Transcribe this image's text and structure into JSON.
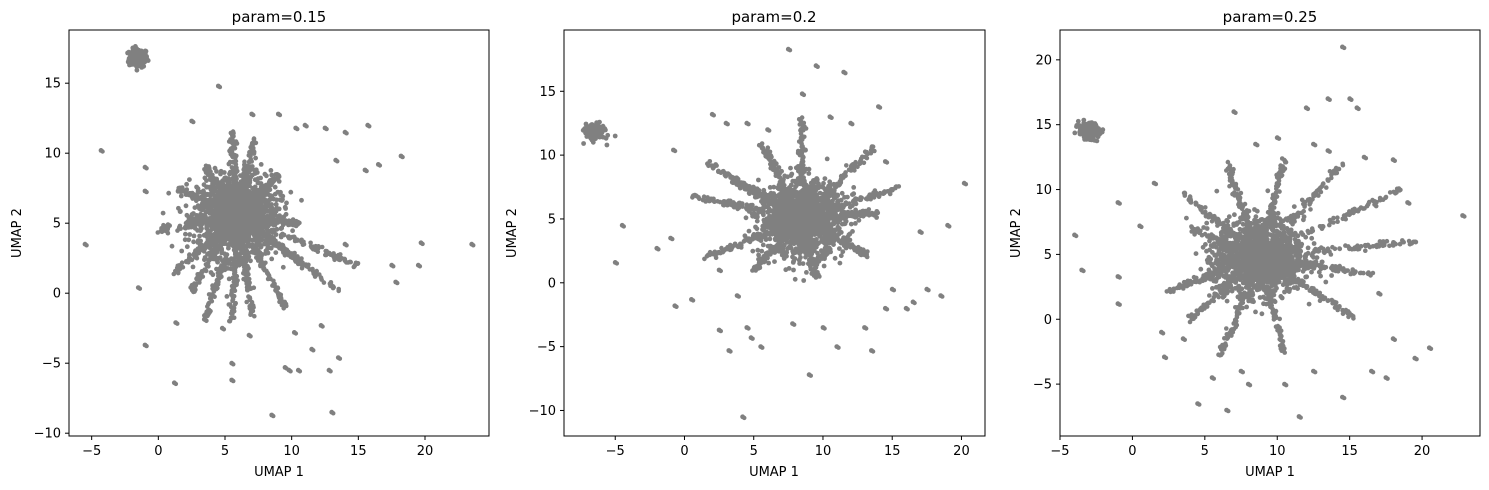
{
  "figure": {
    "background": "#ffffff",
    "point_color": "#808080"
  },
  "chart_data": [
    {
      "type": "scatter",
      "title": "param=0.15",
      "xlabel": "UMAP 1",
      "ylabel": "UMAP 2",
      "xlim": [
        -6.7,
        24.8
      ],
      "ylim": [
        -10.2,
        18.8
      ],
      "xticks": [
        -5,
        0,
        5,
        10,
        15,
        20
      ],
      "yticks": [
        -10,
        -5,
        0,
        5,
        10,
        15
      ],
      "xtick_labels": [
        "−5",
        "0",
        "5",
        "10",
        "15",
        "20"
      ],
      "ytick_labels": [
        "−10",
        "−5",
        "0",
        "5",
        "10",
        "15"
      ],
      "grid": false,
      "legend": "none",
      "dense_clusters": [
        {
          "x": -1.5,
          "y": 16.8,
          "sd": 0.35
        },
        {
          "x": 6.0,
          "y": 5.5,
          "sd": 1.5
        }
      ],
      "rays": [
        {
          "x0": 6,
          "y0": 5.5,
          "x1": 1.2,
          "y1": 1.5
        },
        {
          "x0": 6,
          "y0": 5.5,
          "x1": 2.5,
          "y1": 0.2
        },
        {
          "x0": 6,
          "y0": 5.5,
          "x1": 3.5,
          "y1": -1.8
        },
        {
          "x0": 6,
          "y0": 5.5,
          "x1": 5.5,
          "y1": -2.0
        },
        {
          "x0": 6,
          "y0": 5.5,
          "x1": 7.0,
          "y1": -1.5
        },
        {
          "x0": 6,
          "y0": 5.5,
          "x1": 9.5,
          "y1": -1.0
        },
        {
          "x0": 6,
          "y0": 5.5,
          "x1": 11.0,
          "y1": 2.0
        },
        {
          "x0": 6,
          "y0": 5.5,
          "x1": 15.0,
          "y1": 2.0
        },
        {
          "x0": 6,
          "y0": 5.5,
          "x1": 13.5,
          "y1": 0.2
        },
        {
          "x0": 6,
          "y0": 5.5,
          "x1": 1.5,
          "y1": 7.5
        },
        {
          "x0": 6,
          "y0": 5.5,
          "x1": 3.5,
          "y1": 9.0
        },
        {
          "x0": 6,
          "y0": 5.5,
          "x1": 5.5,
          "y1": 11.5
        },
        {
          "x0": 6,
          "y0": 5.5,
          "x1": 7.2,
          "y1": 11.2
        },
        {
          "x0": 6,
          "y0": 5.5,
          "x1": 9.0,
          "y1": 8.5
        },
        {
          "x0": 6,
          "y0": 5.5,
          "x1": 0.2,
          "y1": 4.5
        },
        {
          "x0": 6,
          "y0": 5.5,
          "x1": 10.5,
          "y1": 5.0
        }
      ],
      "outliers": [
        {
          "x": -5.5,
          "y": 3.5
        },
        {
          "x": -4.3,
          "y": 10.2
        },
        {
          "x": -1.5,
          "y": 0.4
        },
        {
          "x": -1.0,
          "y": -3.7
        },
        {
          "x": -1.0,
          "y": 7.3
        },
        {
          "x": -1.0,
          "y": 9.0
        },
        {
          "x": 1.2,
          "y": -6.4
        },
        {
          "x": 1.3,
          "y": -2.1
        },
        {
          "x": 2.5,
          "y": 12.3
        },
        {
          "x": 4.5,
          "y": 14.8
        },
        {
          "x": 5.5,
          "y": -5.0
        },
        {
          "x": 5.5,
          "y": -6.2
        },
        {
          "x": 6.8,
          "y": -3.0
        },
        {
          "x": 7.0,
          "y": 12.8
        },
        {
          "x": 9.0,
          "y": 12.8
        },
        {
          "x": 9.5,
          "y": -5.3
        },
        {
          "x": 9.8,
          "y": -5.5
        },
        {
          "x": 10.2,
          "y": -2.8
        },
        {
          "x": 10.3,
          "y": 11.8
        },
        {
          "x": 10.5,
          "y": -5.5
        },
        {
          "x": 11.0,
          "y": 12.0
        },
        {
          "x": 11.5,
          "y": -4.0
        },
        {
          "x": 12.2,
          "y": -2.3
        },
        {
          "x": 12.5,
          "y": 11.8
        },
        {
          "x": 12.8,
          "y": -5.5
        },
        {
          "x": 13.0,
          "y": -8.5
        },
        {
          "x": 13.5,
          "y": -4.6
        },
        {
          "x": 13.3,
          "y": 9.5
        },
        {
          "x": 14.0,
          "y": 11.5
        },
        {
          "x": 14.0,
          "y": 3.5
        },
        {
          "x": 15.5,
          "y": 8.8
        },
        {
          "x": 15.7,
          "y": 12.0
        },
        {
          "x": 16.5,
          "y": 9.2
        },
        {
          "x": 17.5,
          "y": 2.0
        },
        {
          "x": 17.8,
          "y": 0.8
        },
        {
          "x": 18.2,
          "y": 9.8
        },
        {
          "x": 19.5,
          "y": 2.0
        },
        {
          "x": 19.7,
          "y": 3.6
        },
        {
          "x": 23.5,
          "y": 3.5
        },
        {
          "x": 8.5,
          "y": -8.7
        },
        {
          "x": 4.8,
          "y": -2.5
        },
        {
          "x": 3.8,
          "y": -1.2
        }
      ]
    },
    {
      "type": "scatter",
      "title": "param=0.2",
      "xlabel": "UMAP 1",
      "ylabel": "UMAP 2",
      "xlim": [
        -8.7,
        21.7
      ],
      "ylim": [
        -12.0,
        19.8
      ],
      "xticks": [
        -5,
        0,
        5,
        10,
        15,
        20
      ],
      "yticks": [
        -10,
        -5,
        0,
        5,
        10,
        15
      ],
      "xtick_labels": [
        "−5",
        "0",
        "5",
        "10",
        "15",
        "20"
      ],
      "ytick_labels": [
        "−10",
        "−5",
        "0",
        "5",
        "10",
        "15"
      ],
      "grid": false,
      "legend": "none",
      "dense_clusters": [
        {
          "x": -6.5,
          "y": 11.8,
          "sd": 0.35
        },
        {
          "x": 8.5,
          "y": 5.0,
          "sd": 1.5
        }
      ],
      "rays": [
        {
          "x0": 8.5,
          "y0": 5,
          "x1": 1.5,
          "y1": 9.5
        },
        {
          "x0": 8.5,
          "y0": 5,
          "x1": 0.5,
          "y1": 6.8
        },
        {
          "x0": 8.5,
          "y0": 5,
          "x1": 1.5,
          "y1": 2.0
        },
        {
          "x0": 8.5,
          "y0": 5,
          "x1": 5.0,
          "y1": 1.0
        },
        {
          "x0": 8.5,
          "y0": 5,
          "x1": 9.5,
          "y1": 0.5
        },
        {
          "x0": 8.5,
          "y0": 5,
          "x1": 13.5,
          "y1": 2.0
        },
        {
          "x0": 8.5,
          "y0": 5,
          "x1": 14.0,
          "y1": 5.5
        },
        {
          "x0": 8.5,
          "y0": 5,
          "x1": 15.5,
          "y1": 7.5
        },
        {
          "x0": 8.5,
          "y0": 5,
          "x1": 13.5,
          "y1": 10.5
        },
        {
          "x0": 8.5,
          "y0": 5,
          "x1": 8.5,
          "y1": 13.0
        },
        {
          "x0": 8.5,
          "y0": 5,
          "x1": 5.5,
          "y1": 11.0
        },
        {
          "x0": 8.5,
          "y0": 5,
          "x1": 3.5,
          "y1": 8.0
        }
      ],
      "outliers": [
        {
          "x": -4.5,
          "y": 4.5
        },
        {
          "x": -5.0,
          "y": 1.6
        },
        {
          "x": -2.0,
          "y": 2.7
        },
        {
          "x": -1.0,
          "y": 3.5
        },
        {
          "x": -0.8,
          "y": 10.4
        },
        {
          "x": -0.7,
          "y": -1.8
        },
        {
          "x": 0.5,
          "y": -1.3
        },
        {
          "x": 2.0,
          "y": 13.2
        },
        {
          "x": 2.5,
          "y": -3.7
        },
        {
          "x": 3.0,
          "y": 12.5
        },
        {
          "x": 3.2,
          "y": -5.3
        },
        {
          "x": 3.8,
          "y": -1.0
        },
        {
          "x": 4.2,
          "y": -10.5
        },
        {
          "x": 4.5,
          "y": -3.5
        },
        {
          "x": 4.8,
          "y": -4.3
        },
        {
          "x": 4.5,
          "y": 12.5
        },
        {
          "x": 5.5,
          "y": -5.0
        },
        {
          "x": 6.0,
          "y": 12.0
        },
        {
          "x": 7.5,
          "y": 18.3
        },
        {
          "x": 7.8,
          "y": -3.2
        },
        {
          "x": 8.5,
          "y": 14.8
        },
        {
          "x": 9.0,
          "y": -7.2
        },
        {
          "x": 9.5,
          "y": 17.0
        },
        {
          "x": 10.0,
          "y": -3.5
        },
        {
          "x": 10.5,
          "y": 13.0
        },
        {
          "x": 11.0,
          "y": -5.0
        },
        {
          "x": 11.5,
          "y": 16.5
        },
        {
          "x": 12.0,
          "y": 12.5
        },
        {
          "x": 13.0,
          "y": -3.5
        },
        {
          "x": 13.5,
          "y": -5.3
        },
        {
          "x": 14.0,
          "y": 13.8
        },
        {
          "x": 14.5,
          "y": -2.0
        },
        {
          "x": 15.0,
          "y": -0.5
        },
        {
          "x": 16.0,
          "y": -2.0
        },
        {
          "x": 16.5,
          "y": -1.5
        },
        {
          "x": 17.0,
          "y": 4.0
        },
        {
          "x": 17.5,
          "y": -0.5
        },
        {
          "x": 18.5,
          "y": -1.0
        },
        {
          "x": 19.0,
          "y": 4.5
        },
        {
          "x": 20.2,
          "y": 7.8
        },
        {
          "x": 14.5,
          "y": 9.5
        },
        {
          "x": 2.5,
          "y": 1.0
        }
      ]
    },
    {
      "type": "scatter",
      "title": "param=0.25",
      "xlabel": "UMAP 1",
      "ylabel": "UMAP 2",
      "xlim": [
        -5.0,
        24.0
      ],
      "ylim": [
        -9.0,
        22.3
      ],
      "xticks": [
        -5,
        0,
        5,
        10,
        15,
        20
      ],
      "yticks": [
        -5,
        0,
        5,
        10,
        15,
        20
      ],
      "xtick_labels": [
        "−5",
        "0",
        "5",
        "10",
        "15",
        "20"
      ],
      "ytick_labels": [
        "−5",
        "0",
        "5",
        "10",
        "15",
        "20"
      ],
      "grid": false,
      "legend": "none",
      "dense_clusters": [
        {
          "x": -3.0,
          "y": 14.5,
          "sd": 0.35
        },
        {
          "x": 8.8,
          "y": 4.8,
          "sd": 1.5
        }
      ],
      "rays": [
        {
          "x0": 8.8,
          "y0": 4.8,
          "x1": 2.5,
          "y1": 2.2
        },
        {
          "x0": 8.8,
          "y0": 4.8,
          "x1": 4.0,
          "y1": 0.0
        },
        {
          "x0": 8.8,
          "y0": 4.8,
          "x1": 6.0,
          "y1": -3.0
        },
        {
          "x0": 8.8,
          "y0": 4.8,
          "x1": 10.5,
          "y1": -2.5
        },
        {
          "x0": 8.8,
          "y0": 4.8,
          "x1": 15.5,
          "y1": 0.0
        },
        {
          "x0": 8.8,
          "y0": 4.8,
          "x1": 16.5,
          "y1": 3.5
        },
        {
          "x0": 8.8,
          "y0": 4.8,
          "x1": 19.5,
          "y1": 6.0
        },
        {
          "x0": 8.8,
          "y0": 4.8,
          "x1": 18.5,
          "y1": 10.0
        },
        {
          "x0": 8.8,
          "y0": 4.8,
          "x1": 14.5,
          "y1": 12.0
        },
        {
          "x0": 8.8,
          "y0": 4.8,
          "x1": 10.5,
          "y1": 12.5
        },
        {
          "x0": 8.8,
          "y0": 4.8,
          "x1": 6.5,
          "y1": 12.0
        },
        {
          "x0": 8.8,
          "y0": 4.8,
          "x1": 4.0,
          "y1": 7.0
        },
        {
          "x0": 8.8,
          "y0": 4.8,
          "x1": 3.5,
          "y1": 9.7
        }
      ],
      "outliers": [
        {
          "x": -4.0,
          "y": 6.5
        },
        {
          "x": -3.5,
          "y": 3.8
        },
        {
          "x": -1.0,
          "y": 3.3
        },
        {
          "x": -1.0,
          "y": 9.0
        },
        {
          "x": -1.0,
          "y": 1.2
        },
        {
          "x": 0.5,
          "y": 7.2
        },
        {
          "x": 1.5,
          "y": 10.5
        },
        {
          "x": 2.0,
          "y": -1.0
        },
        {
          "x": 2.2,
          "y": -2.9
        },
        {
          "x": 3.5,
          "y": -1.5
        },
        {
          "x": 4.5,
          "y": -6.5
        },
        {
          "x": 5.5,
          "y": -4.5
        },
        {
          "x": 6.5,
          "y": -7.0
        },
        {
          "x": 7.0,
          "y": 16.0
        },
        {
          "x": 7.5,
          "y": -4.0
        },
        {
          "x": 8.0,
          "y": -5.0
        },
        {
          "x": 8.5,
          "y": 13.5
        },
        {
          "x": 10.0,
          "y": 14.0
        },
        {
          "x": 10.5,
          "y": -5.0
        },
        {
          "x": 11.5,
          "y": -7.5
        },
        {
          "x": 12.0,
          "y": 16.3
        },
        {
          "x": 12.5,
          "y": -4.0
        },
        {
          "x": 13.5,
          "y": 13.0
        },
        {
          "x": 14.5,
          "y": 21.0
        },
        {
          "x": 14.5,
          "y": -6.0
        },
        {
          "x": 15.5,
          "y": 16.3
        },
        {
          "x": 15.0,
          "y": 17.0
        },
        {
          "x": 16.0,
          "y": 12.5
        },
        {
          "x": 16.5,
          "y": -4.0
        },
        {
          "x": 17.5,
          "y": -4.5
        },
        {
          "x": 18.0,
          "y": 12.3
        },
        {
          "x": 19.0,
          "y": 9.0
        },
        {
          "x": 19.5,
          "y": -3.0
        },
        {
          "x": 20.5,
          "y": -2.2
        },
        {
          "x": 22.8,
          "y": 8.0
        },
        {
          "x": 13.5,
          "y": 17.0
        },
        {
          "x": 12.5,
          "y": 13.5
        },
        {
          "x": 17.0,
          "y": 2.0
        },
        {
          "x": 18.0,
          "y": -1.5
        }
      ]
    }
  ]
}
